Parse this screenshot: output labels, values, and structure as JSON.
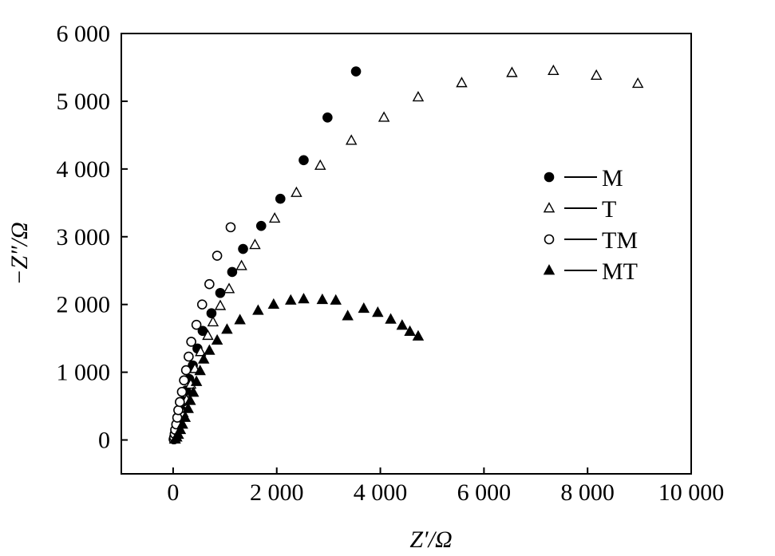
{
  "chart_data": {
    "type": "scatter",
    "title": "",
    "xlabel": "Z′/Ω",
    "ylabel": "−Z″/Ω",
    "xlim": [
      -1000,
      10000
    ],
    "ylim": [
      -500,
      6000
    ],
    "x_ticks": [
      0,
      2000,
      4000,
      6000,
      8000,
      10000
    ],
    "x_tick_labels": [
      "0",
      "2 000",
      "4 000",
      "6 000",
      "8 000",
      "10 000"
    ],
    "y_ticks": [
      0,
      1000,
      2000,
      3000,
      4000,
      5000,
      6000
    ],
    "y_tick_labels": [
      "0",
      "1 000",
      "2 000",
      "3 000",
      "4 000",
      "5 000",
      "6 000"
    ],
    "grid": false,
    "legend": "right",
    "series": [
      {
        "name": "M",
        "marker": "filled-circle",
        "points": [
          [
            20,
            10
          ],
          [
            40,
            40
          ],
          [
            60,
            90
          ],
          [
            80,
            150
          ],
          [
            100,
            230
          ],
          [
            130,
            330
          ],
          [
            160,
            440
          ],
          [
            200,
            570
          ],
          [
            250,
            730
          ],
          [
            310,
            900
          ],
          [
            380,
            1100
          ],
          [
            470,
            1350
          ],
          [
            570,
            1610
          ],
          [
            740,
            1870
          ],
          [
            910,
            2170
          ],
          [
            1140,
            2480
          ],
          [
            1350,
            2820
          ],
          [
            1700,
            3160
          ],
          [
            2070,
            3560
          ],
          [
            2520,
            4130
          ],
          [
            2980,
            4760
          ],
          [
            3530,
            5440
          ]
        ]
      },
      {
        "name": "T",
        "marker": "open-triangle",
        "points": [
          [
            30,
            10
          ],
          [
            50,
            40
          ],
          [
            70,
            90
          ],
          [
            100,
            160
          ],
          [
            140,
            260
          ],
          [
            190,
            400
          ],
          [
            260,
            590
          ],
          [
            340,
            820
          ],
          [
            420,
            1050
          ],
          [
            530,
            1300
          ],
          [
            670,
            1540
          ],
          [
            770,
            1740
          ],
          [
            910,
            1980
          ],
          [
            1080,
            2230
          ],
          [
            1320,
            2570
          ],
          [
            1580,
            2880
          ],
          [
            1960,
            3270
          ],
          [
            2380,
            3650
          ],
          [
            2840,
            4050
          ],
          [
            3440,
            4420
          ],
          [
            4070,
            4760
          ],
          [
            4730,
            5060
          ],
          [
            5570,
            5270
          ],
          [
            6540,
            5420
          ],
          [
            7340,
            5450
          ],
          [
            8170,
            5380
          ],
          [
            8970,
            5260
          ]
        ]
      },
      {
        "name": "TM",
        "marker": "open-circle",
        "points": [
          [
            10,
            10
          ],
          [
            20,
            40
          ],
          [
            30,
            90
          ],
          [
            40,
            150
          ],
          [
            60,
            230
          ],
          [
            80,
            330
          ],
          [
            100,
            440
          ],
          [
            130,
            560
          ],
          [
            170,
            710
          ],
          [
            210,
            880
          ],
          [
            250,
            1030
          ],
          [
            300,
            1230
          ],
          [
            350,
            1450
          ],
          [
            450,
            1700
          ],
          [
            560,
            2000
          ],
          [
            700,
            2300
          ],
          [
            850,
            2720
          ],
          [
            1110,
            3140
          ]
        ]
      },
      {
        "name": "MT",
        "marker": "filled-triangle",
        "points": [
          [
            40,
            10
          ],
          [
            70,
            40
          ],
          [
            100,
            80
          ],
          [
            140,
            150
          ],
          [
            180,
            230
          ],
          [
            230,
            330
          ],
          [
            290,
            460
          ],
          [
            330,
            580
          ],
          [
            390,
            700
          ],
          [
            450,
            860
          ],
          [
            520,
            1020
          ],
          [
            590,
            1190
          ],
          [
            700,
            1320
          ],
          [
            850,
            1470
          ],
          [
            1040,
            1630
          ],
          [
            1290,
            1770
          ],
          [
            1640,
            1910
          ],
          [
            1940,
            2000
          ],
          [
            2270,
            2060
          ],
          [
            2520,
            2080
          ],
          [
            2880,
            2070
          ],
          [
            3140,
            2060
          ],
          [
            3370,
            1830
          ],
          [
            3680,
            1940
          ],
          [
            3950,
            1880
          ],
          [
            4200,
            1780
          ],
          [
            4420,
            1690
          ],
          [
            4570,
            1600
          ],
          [
            4730,
            1530
          ]
        ]
      }
    ]
  }
}
